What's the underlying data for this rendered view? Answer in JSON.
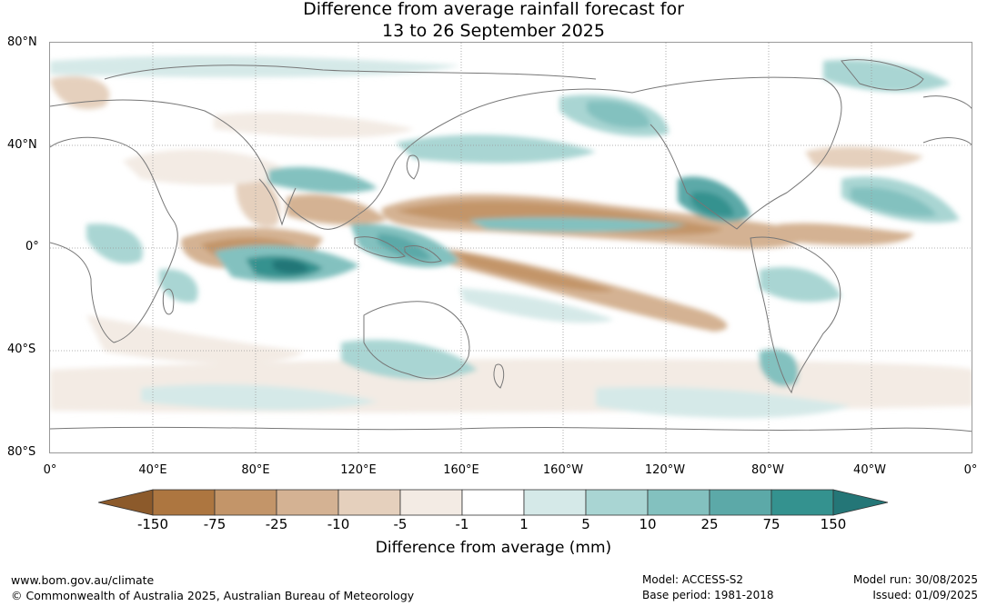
{
  "title": {
    "line1": "Difference from average rainfall forecast for",
    "line2": "13 to 26 September 2025"
  },
  "map": {
    "lat_labels": [
      "80°N",
      "40°N",
      "0°",
      "40°S",
      "80°S"
    ],
    "lon_labels": [
      "0°",
      "40°E",
      "80°E",
      "120°E",
      "160°E",
      "160°W",
      "120°W",
      "80°W",
      "40°W",
      "0°"
    ]
  },
  "legend": {
    "title": "Difference from average (mm)",
    "labels": [
      "-150",
      "-75",
      "-25",
      "-10",
      "-5",
      "-1",
      "1",
      "5",
      "10",
      "25",
      "75",
      "150"
    ],
    "colors": [
      "#8c5a2b",
      "#ad7640",
      "#c39569",
      "#d4b293",
      "#e5d0bd",
      "#f3ebe4",
      "#ffffff",
      "#d5e9e8",
      "#a9d5d3",
      "#83c1bf",
      "#5ca9a8",
      "#34928f",
      "#247677"
    ]
  },
  "footer": {
    "website": "www.bom.gov.au/climate",
    "copyright": "© Commonwealth of Australia 2025, Australian Bureau of Meteorology",
    "model": "Model: ACCESS-S2",
    "base_period": "Base period: 1981-2018",
    "model_run": "Model run: 30/08/2025",
    "issued": "Issued: 01/09/2025"
  }
}
